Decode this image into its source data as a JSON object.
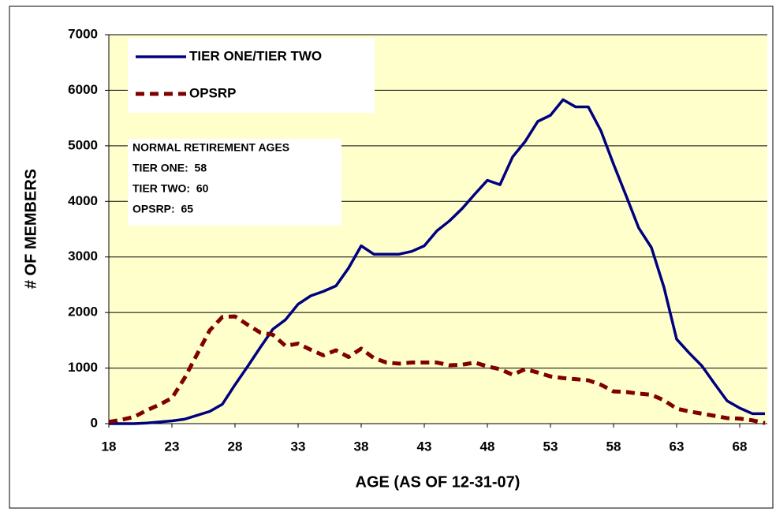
{
  "chart_data": {
    "type": "line",
    "x_label": "AGE (AS OF 12-31-07)",
    "y_label": "# OF MEMBERS",
    "x": [
      18,
      19,
      20,
      21,
      22,
      23,
      24,
      25,
      26,
      27,
      28,
      29,
      30,
      31,
      32,
      33,
      34,
      35,
      36,
      37,
      38,
      39,
      40,
      41,
      42,
      43,
      44,
      45,
      46,
      47,
      48,
      49,
      50,
      51,
      52,
      53,
      54,
      55,
      56,
      57,
      58,
      59,
      60,
      61,
      62,
      63,
      64,
      65,
      66,
      67,
      68,
      69,
      70
    ],
    "series": [
      {
        "name": "TIER ONE/TIER TWO",
        "color": "#000080",
        "dashed": false,
        "values": [
          0,
          0,
          0,
          10,
          30,
          50,
          80,
          150,
          220,
          350,
          700,
          1030,
          1370,
          1700,
          1870,
          2150,
          2300,
          2380,
          2480,
          2800,
          3200,
          3050,
          3050,
          3050,
          3100,
          3200,
          3470,
          3650,
          3870,
          4130,
          4380,
          4300,
          4800,
          5080,
          5440,
          5550,
          5830,
          5700,
          5700,
          5270,
          4670,
          4100,
          3520,
          3170,
          2450,
          1520,
          1270,
          1040,
          720,
          410,
          280,
          180,
          180
        ]
      },
      {
        "name": "OPSRP",
        "color": "#800000",
        "dashed": true,
        "values": [
          30,
          70,
          120,
          240,
          340,
          460,
          820,
          1250,
          1680,
          1920,
          1930,
          1780,
          1640,
          1600,
          1400,
          1440,
          1330,
          1230,
          1320,
          1200,
          1350,
          1180,
          1100,
          1080,
          1100,
          1100,
          1100,
          1050,
          1060,
          1100,
          1030,
          980,
          880,
          980,
          920,
          850,
          820,
          800,
          780,
          700,
          580,
          570,
          540,
          520,
          420,
          270,
          220,
          180,
          140,
          100,
          90,
          60,
          10
        ]
      }
    ],
    "xlim": [
      18,
      70
    ],
    "xticks": [
      18,
      23,
      28,
      33,
      38,
      43,
      48,
      53,
      58,
      63,
      68
    ],
    "ylim": [
      0,
      7000
    ],
    "yticks": [
      0,
      1000,
      2000,
      3000,
      4000,
      5000,
      6000,
      7000
    ],
    "grid": true,
    "legend": "upper left",
    "plot_background": "#ffffcc",
    "annotation": [
      "NORMAL RETIREMENT AGES",
      "TIER ONE:  58",
      "TIER TWO:  60",
      "OPSRP:  65"
    ]
  }
}
